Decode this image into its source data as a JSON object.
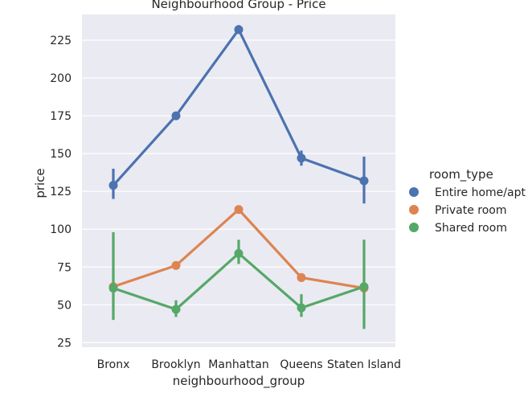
{
  "chart_data": {
    "type": "line",
    "title": "Neighbourhood Group - Price",
    "xlabel": "neighbourhood_group",
    "ylabel": "price",
    "categories": [
      "Bronx",
      "Brooklyn",
      "Manhattan",
      "Queens",
      "Staten Island"
    ],
    "ylim": [
      22,
      242
    ],
    "yticks": [
      25,
      50,
      75,
      100,
      125,
      150,
      175,
      200,
      225
    ],
    "grid": true,
    "legend": {
      "title": "room_type",
      "placement": "right"
    },
    "series": [
      {
        "name": "Entire home/apt",
        "color": "#4c72b0",
        "values": [
          129,
          175,
          232,
          147,
          132
        ],
        "ci_low": [
          120,
          173,
          230,
          142,
          117
        ],
        "ci_high": [
          140,
          177,
          235,
          152,
          148
        ]
      },
      {
        "name": "Private room",
        "color": "#dd8452",
        "values": [
          62,
          76,
          113,
          68,
          61
        ],
        "ci_low": [
          60,
          75,
          112,
          67,
          59
        ],
        "ci_high": [
          64,
          77,
          115,
          70,
          64
        ]
      },
      {
        "name": "Shared room",
        "color": "#55a868",
        "values": [
          61,
          47,
          84,
          48,
          62
        ],
        "ci_low": [
          40,
          42,
          77,
          42,
          34
        ],
        "ci_high": [
          98,
          53,
          93,
          57,
          93
        ]
      }
    ]
  }
}
